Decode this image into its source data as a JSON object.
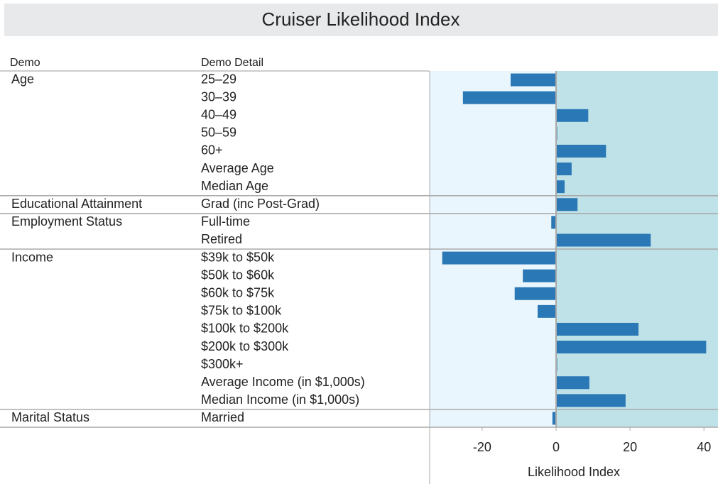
{
  "chart_data": {
    "type": "bar",
    "orientation": "horizontal",
    "title": "Cruiser Likelihood Index",
    "column_headers": [
      "Demo",
      "Demo Detail"
    ],
    "xlabel": "Likelihood Index",
    "color": "#2a78b5",
    "negative_background": "#eaf6fd",
    "positive_background": "#bfe2e8",
    "xlim": [
      -34.2,
      43.8
    ],
    "xticks": [
      -20,
      0,
      20,
      40
    ],
    "groups": [
      {
        "name": "Age",
        "categories": [
          "25–29",
          "30–39",
          "40–49",
          "50–59",
          "60+",
          "Average Age",
          "Median Age"
        ],
        "values": [
          -12.3,
          -25.2,
          8.7,
          0.3,
          13.5,
          4.2,
          2.3
        ]
      },
      {
        "name": "Educational Attainment",
        "categories": [
          "Grad (inc Post-Grad)"
        ],
        "values": [
          5.8
        ]
      },
      {
        "name": "Employment Status",
        "categories": [
          "Full-time",
          "Retired"
        ],
        "values": [
          -1.3,
          25.6
        ]
      },
      {
        "name": "Income",
        "categories": [
          "$39k to $50k",
          "$50k to $60k",
          "$60k to $75k",
          "$75k to $100k",
          "$100k to $200k",
          "$200k to $300k",
          "$300k+",
          "Average Income (in $1,000s)",
          "Median Income (in $1,000s)"
        ],
        "values": [
          -30.8,
          -9.0,
          -11.2,
          -5.0,
          22.3,
          40.6,
          0.3,
          9.0,
          18.8
        ]
      },
      {
        "name": "Marital Status",
        "categories": [
          "Married"
        ],
        "values": [
          -1.0
        ]
      }
    ]
  }
}
